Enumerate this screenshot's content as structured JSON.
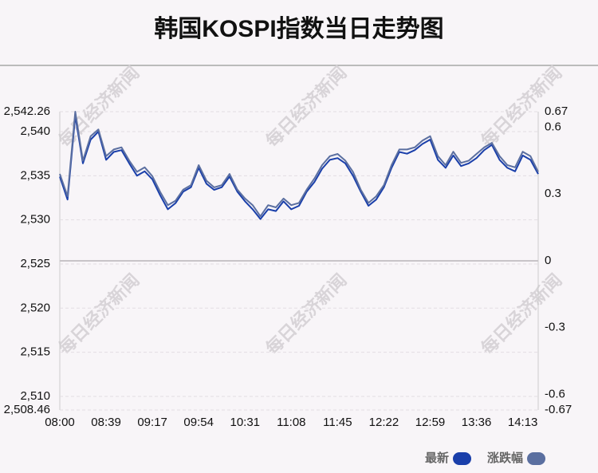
{
  "chart_data": {
    "type": "line",
    "title": "韩国KOSPI指数当日走势图",
    "watermark": "每日经济新闻",
    "categories": [
      "08:00",
      null,
      null,
      null,
      null,
      null,
      "08:39",
      null,
      null,
      null,
      null,
      null,
      "09:17",
      null,
      null,
      null,
      null,
      null,
      "09:54",
      null,
      null,
      null,
      null,
      null,
      "10:31",
      null,
      null,
      null,
      null,
      null,
      "11:08",
      null,
      null,
      null,
      null,
      null,
      "11:45",
      null,
      null,
      null,
      null,
      null,
      "12:22",
      null,
      null,
      null,
      null,
      null,
      "12:59",
      null,
      null,
      null,
      null,
      null,
      "13:36",
      null,
      null,
      null,
      null,
      null,
      "14:13",
      null,
      null
    ],
    "series": [
      {
        "name": "最新",
        "color": "#1a3faa",
        "values": [
          2534.9,
          2532.3,
          2541.8,
          2536.4,
          2539.1,
          2540,
          2536.8,
          2537.7,
          2537.9,
          2536.4,
          2535,
          2535.5,
          2534.6,
          2532.8,
          2531.2,
          2531.9,
          2533.2,
          2533.7,
          2535.9,
          2534.1,
          2533.4,
          2533.7,
          2534.9,
          2533.2,
          2532.1,
          2531.2,
          2530.1,
          2531.2,
          2531,
          2532.1,
          2531.2,
          2531.6,
          2533.2,
          2534.3,
          2535.8,
          2536.8,
          2537,
          2536.4,
          2535,
          2533.2,
          2531.6,
          2532.3,
          2533.7,
          2535.9,
          2537.7,
          2537.5,
          2537.9,
          2538.6,
          2539.1,
          2536.8,
          2535.9,
          2537.3,
          2536.1,
          2536.4,
          2537,
          2537.9,
          2538.5,
          2536.8,
          2535.9,
          2535.5,
          2537.3,
          2536.8,
          2535.2
        ]
      },
      {
        "name": "涨跌幅",
        "color": "#5b6fa0",
        "axis": "y2",
        "values": [
          0.39,
          0.29,
          0.67,
          0.45,
          0.56,
          0.59,
          0.47,
          0.5,
          0.51,
          0.45,
          0.4,
          0.42,
          0.38,
          0.31,
          0.25,
          0.27,
          0.32,
          0.34,
          0.43,
          0.36,
          0.33,
          0.34,
          0.39,
          0.32,
          0.28,
          0.25,
          0.2,
          0.25,
          0.24,
          0.28,
          0.25,
          0.26,
          0.32,
          0.37,
          0.43,
          0.47,
          0.48,
          0.45,
          0.4,
          0.32,
          0.26,
          0.29,
          0.34,
          0.43,
          0.5,
          0.5,
          0.51,
          0.54,
          0.56,
          0.47,
          0.43,
          0.49,
          0.44,
          0.45,
          0.48,
          0.51,
          0.53,
          0.47,
          0.43,
          0.42,
          0.49,
          0.47,
          0.4
        ]
      }
    ],
    "ylim": [
      2508.46,
      2542.26
    ],
    "yticks": [
      {
        "value": 2508.46,
        "label": "2,508.46"
      },
      {
        "value": 2510,
        "label": "2,510"
      },
      {
        "value": 2515,
        "label": "2,515"
      },
      {
        "value": 2520,
        "label": "2,520"
      },
      {
        "value": 2525,
        "label": "2,525"
      },
      {
        "value": 2530,
        "label": "2,530"
      },
      {
        "value": 2535,
        "label": "2,535"
      },
      {
        "value": 2540,
        "label": "2,540"
      },
      {
        "value": 2542.26,
        "label": "2,542.26"
      }
    ],
    "y2lim": [
      -0.67,
      0.67
    ],
    "y2ticks": [
      -0.67,
      -0.6,
      -0.3,
      0,
      0.3,
      0.6,
      0.67
    ],
    "grid": true
  }
}
